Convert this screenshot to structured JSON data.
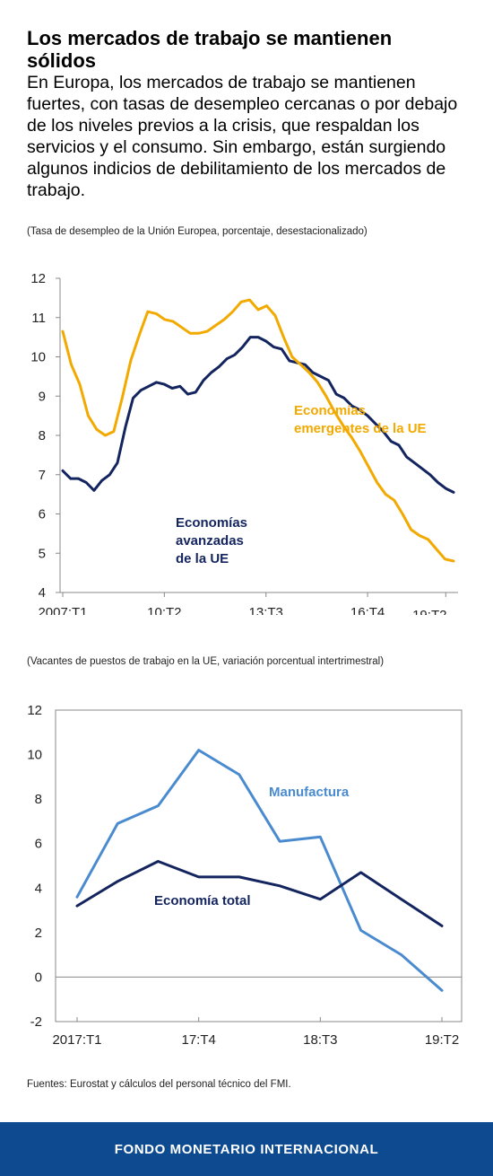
{
  "header": {
    "title": "Los mercados de trabajo se mantienen sólidos",
    "subtitle": "En Europa, los mercados de trabajo se mantienen fuertes, con tasas de desempleo cercanas o por debajo de los niveles previos a la crisis, que respaldan los servicios y el consumo. Sin embargo, están surgiendo algunos indicios de debilitamiento de los mercados de trabajo."
  },
  "chart_data": [
    {
      "type": "line",
      "note": "(Tasa de desempleo de la Unión Europea, porcentaje, desestacionalizado)",
      "ylim": [
        4,
        12
      ],
      "yticks": [
        "4",
        "5",
        "6",
        "7",
        "8",
        "9",
        "10",
        "11",
        "12"
      ],
      "x_tick_labels": [
        "2007:T1",
        "10:T2",
        "13:T3",
        "16:T4",
        "19:T2"
      ],
      "x_tick_positions": [
        0,
        13,
        26,
        39,
        49
      ],
      "grid": false,
      "series": [
        {
          "name": "Economías avanzadas de la UE",
          "color": "#13245f",
          "values": [
            7.1,
            6.9,
            6.9,
            6.8,
            6.6,
            6.85,
            7.0,
            7.3,
            8.2,
            8.95,
            9.15,
            9.25,
            9.35,
            9.3,
            9.2,
            9.25,
            9.05,
            9.1,
            9.4,
            9.6,
            9.75,
            9.95,
            10.05,
            10.25,
            10.5,
            10.5,
            10.4,
            10.25,
            10.2,
            9.9,
            9.85,
            9.8,
            9.6,
            9.5,
            9.4,
            9.05,
            8.95,
            8.75,
            8.65,
            8.5,
            8.3,
            8.1,
            7.85,
            7.75,
            7.45,
            7.3,
            7.15,
            7.0,
            6.8,
            6.65,
            6.55
          ]
        },
        {
          "name": "Economías emergentes de la UE",
          "color": "#f2a900",
          "values": [
            10.65,
            9.8,
            9.3,
            8.5,
            8.15,
            8.0,
            8.1,
            8.95,
            9.9,
            10.55,
            11.15,
            11.1,
            10.95,
            10.9,
            10.75,
            10.6,
            10.6,
            10.65,
            10.8,
            10.95,
            11.15,
            11.4,
            11.45,
            11.2,
            11.3,
            11.05,
            10.5,
            10.0,
            9.8,
            9.6,
            9.35,
            9.0,
            8.6,
            8.25,
            7.95,
            7.6,
            7.2,
            6.8,
            6.5,
            6.35,
            6.0,
            5.6,
            5.45,
            5.35,
            5.1,
            4.85,
            4.8
          ]
        }
      ]
    },
    {
      "type": "line",
      "note": "(Vacantes de puestos de trabajo en la UE, variación porcentual intertrimestral)",
      "ylim": [
        -2,
        12
      ],
      "yticks": [
        "-2",
        "0",
        "2",
        "4",
        "6",
        "8",
        "10",
        "12"
      ],
      "x_tick_labels": [
        "2017:T1",
        "17:T4",
        "18:T3",
        "19:T2"
      ],
      "x_tick_positions": [
        0,
        3,
        6,
        9
      ],
      "grid": false,
      "series": [
        {
          "name": "Manufactura",
          "color": "#4a8bd0",
          "values": [
            3.6,
            6.9,
            7.7,
            10.2,
            9.1,
            6.1,
            6.3,
            2.1,
            1.0,
            -0.6
          ]
        },
        {
          "name": "Economía total",
          "color": "#13245f",
          "values": [
            3.2,
            4.3,
            5.2,
            4.5,
            4.5,
            4.1,
            3.5,
            4.7,
            3.5,
            2.3
          ]
        }
      ]
    }
  ],
  "chart1_labels": {
    "advanced": [
      "Economías",
      "avanzadas",
      "de la UE"
    ],
    "emerging": [
      "Economías",
      "emergentes de la UE"
    ]
  },
  "chart2_labels": {
    "manufacturing": "Manufactura",
    "total": "Economía total"
  },
  "source": "Fuentes: Eurostat y cálculos del personal técnico del FMI.",
  "footer": {
    "label": "FONDO MONETARIO INTERNACIONAL"
  }
}
